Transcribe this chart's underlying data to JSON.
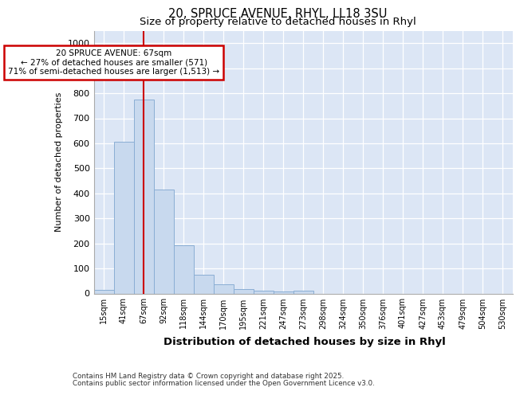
{
  "title1": "20, SPRUCE AVENUE, RHYL, LL18 3SU",
  "title2": "Size of property relative to detached houses in Rhyl",
  "xlabel": "Distribution of detached houses by size in Rhyl",
  "ylabel": "Number of detached properties",
  "categories": [
    "15sqm",
    "41sqm",
    "67sqm",
    "92sqm",
    "118sqm",
    "144sqm",
    "170sqm",
    "195sqm",
    "221sqm",
    "247sqm",
    "273sqm",
    "298sqm",
    "324sqm",
    "350sqm",
    "376sqm",
    "401sqm",
    "427sqm",
    "453sqm",
    "479sqm",
    "504sqm",
    "530sqm"
  ],
  "values": [
    15,
    605,
    775,
    415,
    192,
    75,
    38,
    17,
    12,
    8,
    12,
    0,
    0,
    0,
    0,
    0,
    0,
    0,
    0,
    0,
    0
  ],
  "bar_color": "#c8d9ee",
  "bar_edge_color": "#8aaed4",
  "vline_x_idx": 2,
  "vline_color": "#cc0000",
  "ann_line1": "20 SPRUCE AVENUE: 67sqm",
  "ann_line2": "← 27% of detached houses are smaller (571)",
  "ann_line3": "71% of semi-detached houses are larger (1,513) →",
  "annotation_box_color": "#cc0000",
  "ylim": [
    0,
    1050
  ],
  "yticks": [
    0,
    100,
    200,
    300,
    400,
    500,
    600,
    700,
    800,
    900,
    1000
  ],
  "bg_color": "#dce6f5",
  "plot_bg": "#dce6f5",
  "footer1": "Contains HM Land Registry data © Crown copyright and database right 2025.",
  "footer2": "Contains public sector information licensed under the Open Government Licence v3.0."
}
